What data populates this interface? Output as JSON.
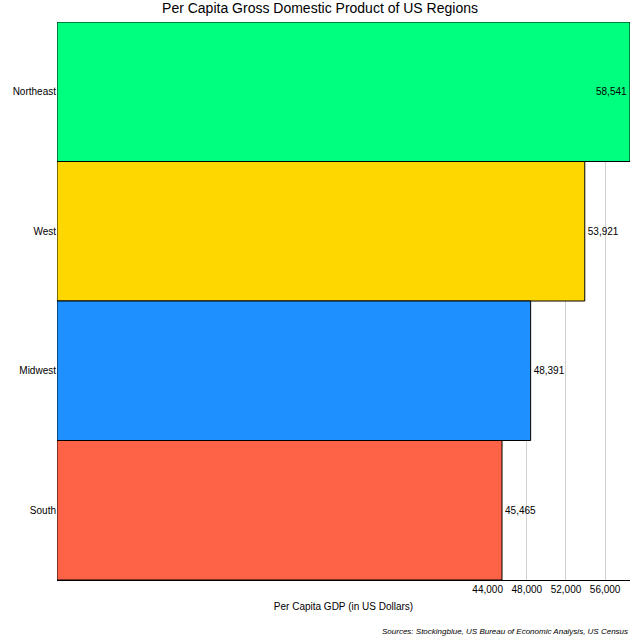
{
  "chart_data": {
    "type": "bar",
    "orientation": "horizontal",
    "title": "Per Capita Gross Domestic Product of US Regions",
    "x_label": "Per Capita GDP (in US Dollars)",
    "categories": [
      "Northeast",
      "West",
      "Midwest",
      "South"
    ],
    "values": [
      58541,
      53921,
      48391,
      45465
    ],
    "value_labels": [
      "58,541",
      "53,921",
      "48,391",
      "45,465"
    ],
    "colors": [
      "#00ff7f",
      "#ffd700",
      "#1e90ff",
      "#ff6347"
    ],
    "xlim": [
      0,
      58541
    ],
    "xticks": [
      {
        "value": 44000,
        "label": "44,000"
      },
      {
        "value": 48000,
        "label": "48,000"
      },
      {
        "value": 52000,
        "label": "52,000"
      },
      {
        "value": 56000,
        "label": "56,000"
      }
    ],
    "grid": true,
    "data_labels": true,
    "annotations": [
      "Sources: Stockingblue, US Bureau of Economic Analysis, US Census"
    ]
  }
}
